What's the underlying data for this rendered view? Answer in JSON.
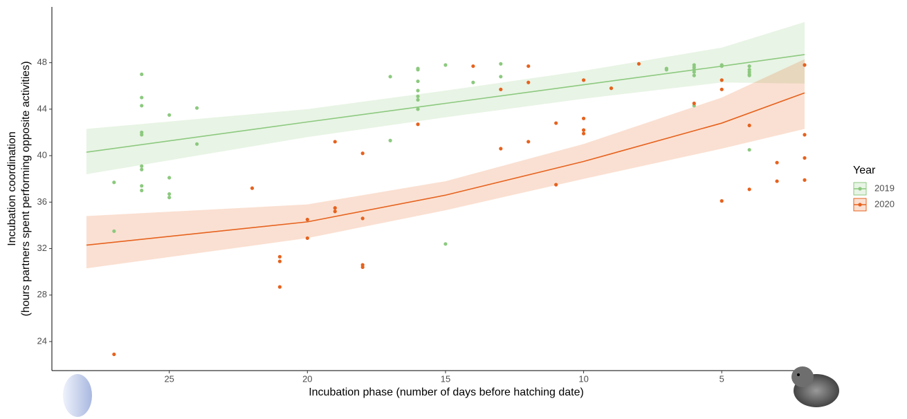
{
  "chart_data": {
    "type": "scatter",
    "xlabel": "Incubation phase (number of days before hatching date)",
    "ylabel": [
      "Incubation coordination",
      "(hours partners spent performing opposite activities)"
    ],
    "xlim": [
      29.25,
      2
    ],
    "ylim": [
      21.5,
      52.8
    ],
    "xticks": [
      25,
      20,
      15,
      10,
      5
    ],
    "yticks": [
      24,
      28,
      32,
      36,
      40,
      44,
      48
    ],
    "grid": false,
    "legend": {
      "title": "Year",
      "position": "right"
    },
    "series": [
      {
        "name": "2019",
        "color": "#8cc97f",
        "x": [
          27,
          27,
          26,
          26,
          26,
          26,
          26,
          26,
          26,
          26,
          26,
          25,
          25,
          25,
          25,
          24,
          24,
          17,
          17,
          16,
          16,
          16,
          16,
          16,
          16,
          16,
          15,
          15,
          14,
          13,
          13,
          7,
          7,
          6,
          6,
          6,
          6,
          6,
          6,
          5,
          5,
          4,
          4,
          4,
          4,
          4,
          4
        ],
        "values": [
          37.7,
          33.5,
          47.0,
          45.0,
          44.3,
          42.0,
          41.8,
          39.1,
          38.8,
          37.4,
          37.0,
          43.5,
          38.1,
          36.7,
          36.4,
          44.1,
          41.0,
          46.8,
          41.3,
          47.5,
          47.4,
          46.4,
          45.6,
          45.1,
          44.8,
          44.0,
          47.8,
          32.4,
          46.3,
          47.9,
          46.8,
          47.5,
          47.4,
          47.8,
          47.6,
          47.4,
          47.2,
          46.9,
          44.3,
          47.8,
          47.7,
          47.7,
          47.4,
          47.2,
          47.0,
          46.9,
          40.5
        ],
        "fit": {
          "x": [
            28,
            20,
            15,
            10,
            5,
            2
          ],
          "values": [
            40.3,
            42.9,
            44.5,
            46.1,
            47.7,
            48.7
          ],
          "lower": [
            38.4,
            41.6,
            43.3,
            44.9,
            46.3,
            46.2
          ],
          "upper": [
            42.3,
            44.0,
            45.6,
            47.3,
            49.3,
            51.5
          ]
        }
      },
      {
        "name": "2020",
        "color": "#e6621e",
        "x": [
          27,
          22,
          21,
          21,
          21,
          20,
          20,
          19,
          19,
          19,
          18,
          18,
          18,
          18,
          16,
          14,
          13,
          13,
          12,
          12,
          12,
          11,
          11,
          10,
          10,
          10,
          10,
          9,
          8,
          6,
          5,
          5,
          5,
          4,
          4,
          3,
          3,
          2,
          2,
          2,
          2
        ],
        "values": [
          22.9,
          37.2,
          31.3,
          30.9,
          28.7,
          34.5,
          32.9,
          41.2,
          35.5,
          35.2,
          40.2,
          34.6,
          30.6,
          30.4,
          42.7,
          47.7,
          45.7,
          40.6,
          47.7,
          46.3,
          41.2,
          42.8,
          37.5,
          46.5,
          43.2,
          42.2,
          41.9,
          45.8,
          47.9,
          44.5,
          46.5,
          45.7,
          36.1,
          42.6,
          37.1,
          39.4,
          37.8,
          47.8,
          41.8,
          39.8,
          37.9
        ],
        "fit": {
          "x": [
            28,
            20,
            15,
            10,
            5,
            2
          ],
          "values": [
            32.3,
            34.3,
            36.6,
            39.5,
            42.8,
            45.4
          ],
          "lower": [
            30.3,
            32.9,
            35.3,
            38.0,
            40.6,
            42.3
          ],
          "upper": [
            34.8,
            35.8,
            37.8,
            41.0,
            45.0,
            48.3
          ]
        }
      }
    ]
  }
}
